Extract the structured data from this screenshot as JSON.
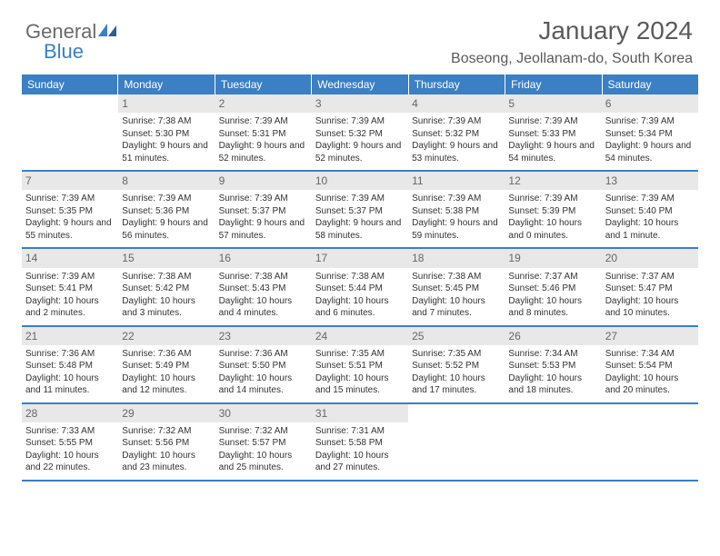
{
  "logo": {
    "part1": "General",
    "part2": "Blue"
  },
  "title": "January 2024",
  "location": "Boseong, Jeollanam-do, South Korea",
  "colors": {
    "header_bg": "#3b7fc4",
    "header_text": "#ffffff",
    "daynum_bg": "#e8e8e8",
    "daynum_text": "#666666",
    "body_text": "#333333",
    "border": "#3b7fc4",
    "page_bg": "#ffffff"
  },
  "weekdays": [
    "Sunday",
    "Monday",
    "Tuesday",
    "Wednesday",
    "Thursday",
    "Friday",
    "Saturday"
  ],
  "weeks": [
    [
      {
        "n": "",
        "sr": "",
        "ss": "",
        "dl": ""
      },
      {
        "n": "1",
        "sr": "Sunrise: 7:38 AM",
        "ss": "Sunset: 5:30 PM",
        "dl": "Daylight: 9 hours and 51 minutes."
      },
      {
        "n": "2",
        "sr": "Sunrise: 7:39 AM",
        "ss": "Sunset: 5:31 PM",
        "dl": "Daylight: 9 hours and 52 minutes."
      },
      {
        "n": "3",
        "sr": "Sunrise: 7:39 AM",
        "ss": "Sunset: 5:32 PM",
        "dl": "Daylight: 9 hours and 52 minutes."
      },
      {
        "n": "4",
        "sr": "Sunrise: 7:39 AM",
        "ss": "Sunset: 5:32 PM",
        "dl": "Daylight: 9 hours and 53 minutes."
      },
      {
        "n": "5",
        "sr": "Sunrise: 7:39 AM",
        "ss": "Sunset: 5:33 PM",
        "dl": "Daylight: 9 hours and 54 minutes."
      },
      {
        "n": "6",
        "sr": "Sunrise: 7:39 AM",
        "ss": "Sunset: 5:34 PM",
        "dl": "Daylight: 9 hours and 54 minutes."
      }
    ],
    [
      {
        "n": "7",
        "sr": "Sunrise: 7:39 AM",
        "ss": "Sunset: 5:35 PM",
        "dl": "Daylight: 9 hours and 55 minutes."
      },
      {
        "n": "8",
        "sr": "Sunrise: 7:39 AM",
        "ss": "Sunset: 5:36 PM",
        "dl": "Daylight: 9 hours and 56 minutes."
      },
      {
        "n": "9",
        "sr": "Sunrise: 7:39 AM",
        "ss": "Sunset: 5:37 PM",
        "dl": "Daylight: 9 hours and 57 minutes."
      },
      {
        "n": "10",
        "sr": "Sunrise: 7:39 AM",
        "ss": "Sunset: 5:37 PM",
        "dl": "Daylight: 9 hours and 58 minutes."
      },
      {
        "n": "11",
        "sr": "Sunrise: 7:39 AM",
        "ss": "Sunset: 5:38 PM",
        "dl": "Daylight: 9 hours and 59 minutes."
      },
      {
        "n": "12",
        "sr": "Sunrise: 7:39 AM",
        "ss": "Sunset: 5:39 PM",
        "dl": "Daylight: 10 hours and 0 minutes."
      },
      {
        "n": "13",
        "sr": "Sunrise: 7:39 AM",
        "ss": "Sunset: 5:40 PM",
        "dl": "Daylight: 10 hours and 1 minute."
      }
    ],
    [
      {
        "n": "14",
        "sr": "Sunrise: 7:39 AM",
        "ss": "Sunset: 5:41 PM",
        "dl": "Daylight: 10 hours and 2 minutes."
      },
      {
        "n": "15",
        "sr": "Sunrise: 7:38 AM",
        "ss": "Sunset: 5:42 PM",
        "dl": "Daylight: 10 hours and 3 minutes."
      },
      {
        "n": "16",
        "sr": "Sunrise: 7:38 AM",
        "ss": "Sunset: 5:43 PM",
        "dl": "Daylight: 10 hours and 4 minutes."
      },
      {
        "n": "17",
        "sr": "Sunrise: 7:38 AM",
        "ss": "Sunset: 5:44 PM",
        "dl": "Daylight: 10 hours and 6 minutes."
      },
      {
        "n": "18",
        "sr": "Sunrise: 7:38 AM",
        "ss": "Sunset: 5:45 PM",
        "dl": "Daylight: 10 hours and 7 minutes."
      },
      {
        "n": "19",
        "sr": "Sunrise: 7:37 AM",
        "ss": "Sunset: 5:46 PM",
        "dl": "Daylight: 10 hours and 8 minutes."
      },
      {
        "n": "20",
        "sr": "Sunrise: 7:37 AM",
        "ss": "Sunset: 5:47 PM",
        "dl": "Daylight: 10 hours and 10 minutes."
      }
    ],
    [
      {
        "n": "21",
        "sr": "Sunrise: 7:36 AM",
        "ss": "Sunset: 5:48 PM",
        "dl": "Daylight: 10 hours and 11 minutes."
      },
      {
        "n": "22",
        "sr": "Sunrise: 7:36 AM",
        "ss": "Sunset: 5:49 PM",
        "dl": "Daylight: 10 hours and 12 minutes."
      },
      {
        "n": "23",
        "sr": "Sunrise: 7:36 AM",
        "ss": "Sunset: 5:50 PM",
        "dl": "Daylight: 10 hours and 14 minutes."
      },
      {
        "n": "24",
        "sr": "Sunrise: 7:35 AM",
        "ss": "Sunset: 5:51 PM",
        "dl": "Daylight: 10 hours and 15 minutes."
      },
      {
        "n": "25",
        "sr": "Sunrise: 7:35 AM",
        "ss": "Sunset: 5:52 PM",
        "dl": "Daylight: 10 hours and 17 minutes."
      },
      {
        "n": "26",
        "sr": "Sunrise: 7:34 AM",
        "ss": "Sunset: 5:53 PM",
        "dl": "Daylight: 10 hours and 18 minutes."
      },
      {
        "n": "27",
        "sr": "Sunrise: 7:34 AM",
        "ss": "Sunset: 5:54 PM",
        "dl": "Daylight: 10 hours and 20 minutes."
      }
    ],
    [
      {
        "n": "28",
        "sr": "Sunrise: 7:33 AM",
        "ss": "Sunset: 5:55 PM",
        "dl": "Daylight: 10 hours and 22 minutes."
      },
      {
        "n": "29",
        "sr": "Sunrise: 7:32 AM",
        "ss": "Sunset: 5:56 PM",
        "dl": "Daylight: 10 hours and 23 minutes."
      },
      {
        "n": "30",
        "sr": "Sunrise: 7:32 AM",
        "ss": "Sunset: 5:57 PM",
        "dl": "Daylight: 10 hours and 25 minutes."
      },
      {
        "n": "31",
        "sr": "Sunrise: 7:31 AM",
        "ss": "Sunset: 5:58 PM",
        "dl": "Daylight: 10 hours and 27 minutes."
      },
      {
        "n": "",
        "sr": "",
        "ss": "",
        "dl": ""
      },
      {
        "n": "",
        "sr": "",
        "ss": "",
        "dl": ""
      },
      {
        "n": "",
        "sr": "",
        "ss": "",
        "dl": ""
      }
    ]
  ]
}
